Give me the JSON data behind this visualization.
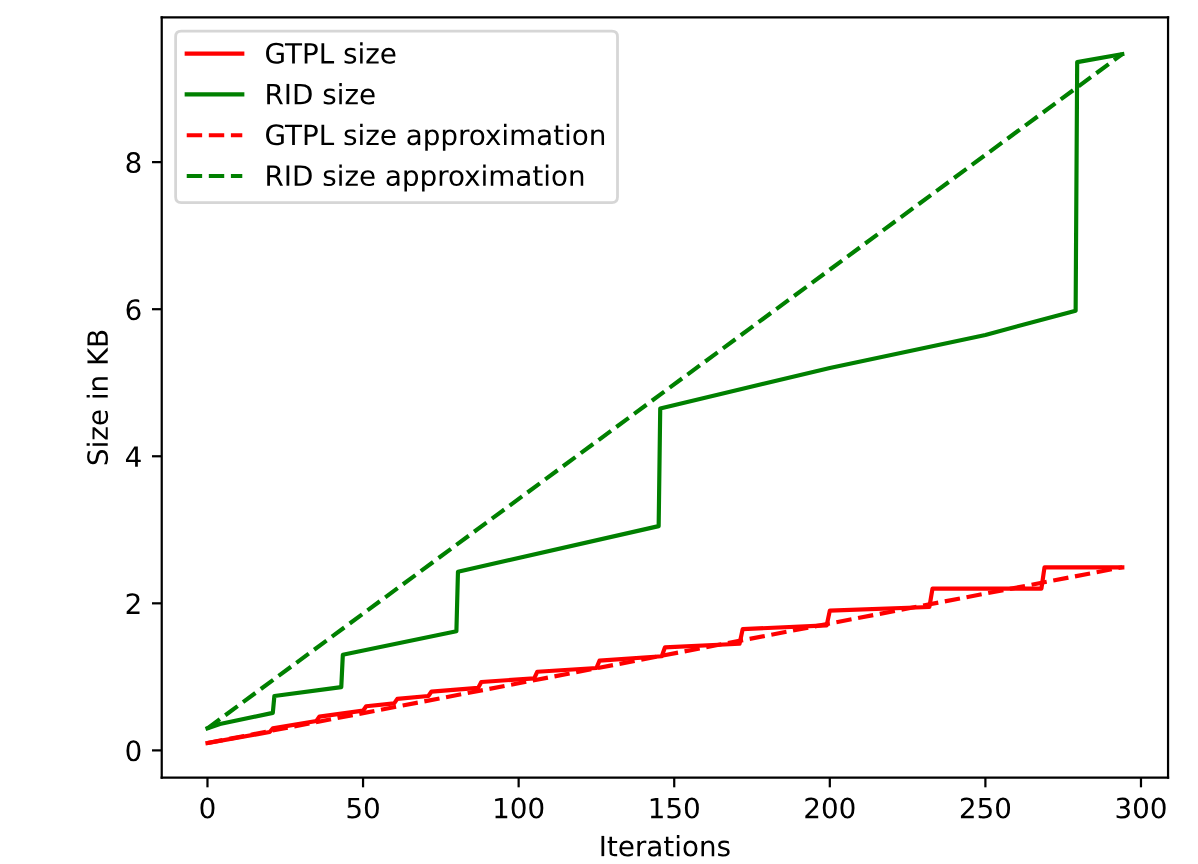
{
  "chart_data": {
    "type": "line",
    "xlabel": "Iterations",
    "ylabel": "Size in KB",
    "xlim": [
      -14.7,
      308.7
    ],
    "ylim": [
      -0.37,
      9.97
    ],
    "xticks": [
      0,
      50,
      100,
      150,
      200,
      250,
      300
    ],
    "yticks": [
      0,
      2,
      4,
      6,
      8
    ],
    "legend": "top left",
    "grid": false,
    "series": [
      {
        "name": "GTPL size",
        "color": "#ff0000",
        "line_style": "solid",
        "x": [
          0,
          20,
          21,
          35,
          36,
          50,
          51,
          60,
          61,
          71,
          72,
          87,
          88,
          105,
          106,
          125,
          126,
          146,
          147,
          171,
          172,
          199,
          200,
          232,
          233,
          268,
          269,
          294
        ],
        "values": [
          0.1,
          0.25,
          0.3,
          0.4,
          0.46,
          0.54,
          0.6,
          0.64,
          0.7,
          0.74,
          0.8,
          0.85,
          0.93,
          0.98,
          1.07,
          1.12,
          1.22,
          1.28,
          1.4,
          1.45,
          1.65,
          1.7,
          1.9,
          1.95,
          2.2,
          2.2,
          2.49,
          2.49
        ]
      },
      {
        "name": "RID size",
        "color": "#008000",
        "line_style": "solid",
        "x": [
          0,
          4,
          21,
          21.5,
          43,
          43.5,
          80,
          80.5,
          145,
          145.5,
          200,
          250,
          279,
          279.5,
          294
        ],
        "values": [
          0.3,
          0.36,
          0.51,
          0.74,
          0.86,
          1.3,
          1.62,
          2.43,
          3.05,
          4.65,
          5.2,
          5.65,
          5.98,
          9.36,
          9.47
        ]
      },
      {
        "name": "GTPL size approximation",
        "color": "#ff0000",
        "line_style": "dashed",
        "x": [
          0,
          294
        ],
        "values": [
          0.1,
          2.49
        ]
      },
      {
        "name": "RID size approximation",
        "color": "#008000",
        "line_style": "dashed",
        "x": [
          0,
          294
        ],
        "values": [
          0.3,
          9.47
        ]
      }
    ]
  }
}
